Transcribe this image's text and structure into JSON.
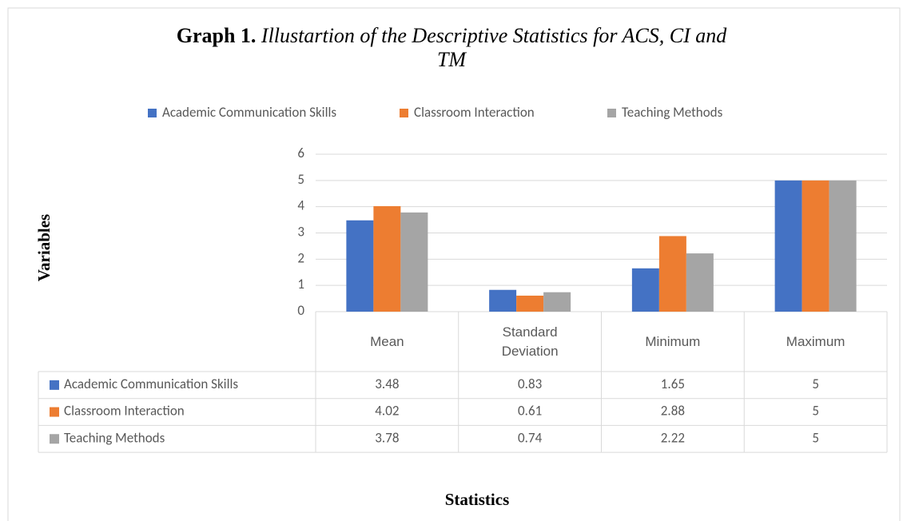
{
  "chart_data": {
    "type": "bar",
    "title_label": "Graph 1.",
    "title": "Illustartion of the Descriptive Statistics for ACS, CI and TM",
    "x_label": "Statistics",
    "y_label": "Variables",
    "categories": [
      "Mean",
      "Standard Deviation",
      "Minimum",
      "Maximum"
    ],
    "series": [
      {
        "name": "Academic Communication Skills",
        "color": "#4472c4",
        "values": [
          3.48,
          0.83,
          1.65,
          5
        ]
      },
      {
        "name": "Classroom Interaction",
        "color": "#ed7d31",
        "values": [
          4.02,
          0.61,
          2.88,
          5
        ]
      },
      {
        "name": "Teaching Methods",
        "color": "#a5a5a5",
        "values": [
          3.78,
          0.74,
          2.22,
          5
        ]
      }
    ],
    "ylim": [
      0,
      6
    ],
    "yticks": [
      0,
      1,
      2,
      3,
      4,
      5,
      6
    ],
    "grid": true,
    "legend": "top",
    "data_table": true
  }
}
